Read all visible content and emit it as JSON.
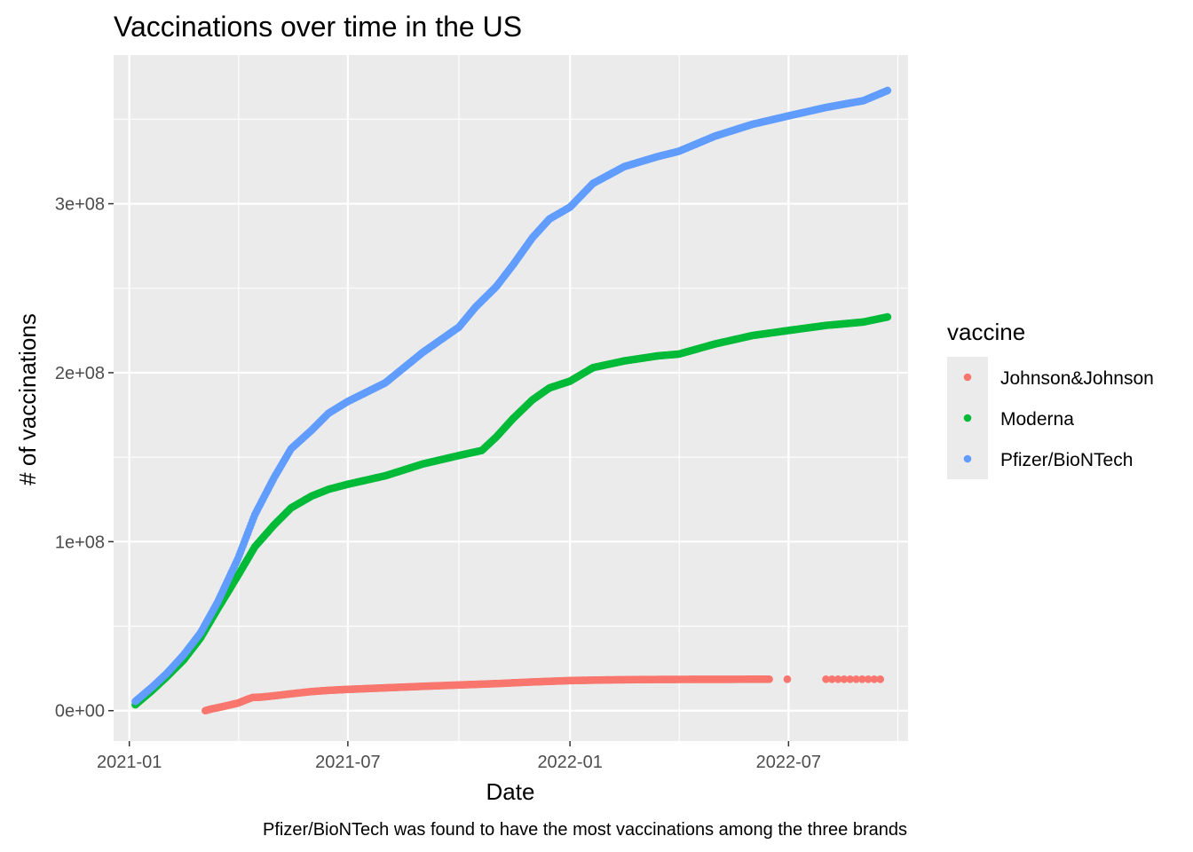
{
  "chart_data": {
    "type": "scatter",
    "title": "Vaccinations over time in the US",
    "xlabel": "Date",
    "ylabel": "# of vaccinations",
    "caption": "Pfizer/BioNTech was found to have the most vaccinations among the three brands",
    "legend_title": "vaccine",
    "legend_position": "right",
    "grid": true,
    "x_range": [
      "2020-12-19",
      "2022-10-08"
    ],
    "y_range": [
      -18000000,
      388000000
    ],
    "x_ticks": [
      "2021-01-01",
      "2021-07-01",
      "2022-01-01",
      "2022-07-01"
    ],
    "x_tick_labels": [
      "2021-01",
      "2021-07",
      "2022-01",
      "2022-07"
    ],
    "y_ticks": [
      0,
      100000000,
      200000000,
      300000000
    ],
    "y_tick_labels": [
      "0e+00",
      "1e+08",
      "2e+08",
      "3e+08"
    ],
    "series": [
      {
        "name": "Johnson&Johnson",
        "color": "#F8766D",
        "points": [
          [
            "2021-03-05",
            0
          ],
          [
            "2021-03-10",
            1000000
          ],
          [
            "2021-03-20",
            2500000
          ],
          [
            "2021-04-01",
            4500000
          ],
          [
            "2021-04-08",
            6500000
          ],
          [
            "2021-04-13",
            7800000
          ],
          [
            "2021-04-20",
            8000000
          ],
          [
            "2021-05-01",
            8800000
          ],
          [
            "2021-05-15",
            10000000
          ],
          [
            "2021-06-01",
            11300000
          ],
          [
            "2021-06-15",
            12000000
          ],
          [
            "2021-07-01",
            12600000
          ],
          [
            "2021-08-01",
            13500000
          ],
          [
            "2021-09-01",
            14400000
          ],
          [
            "2021-10-01",
            15200000
          ],
          [
            "2021-11-01",
            16000000
          ],
          [
            "2021-12-01",
            17000000
          ],
          [
            "2022-01-01",
            17800000
          ],
          [
            "2022-02-01",
            18200000
          ],
          [
            "2022-03-01",
            18400000
          ],
          [
            "2022-04-01",
            18500000
          ],
          [
            "2022-06-15",
            18600000
          ]
        ],
        "extra_points": [
          "2022-06-30",
          "2022-08-01",
          "2022-08-06",
          "2022-08-11",
          "2022-08-16",
          "2022-08-21",
          "2022-08-26",
          "2022-08-31",
          "2022-09-05",
          "2022-09-10",
          "2022-09-15"
        ],
        "extra_value": 18600000
      },
      {
        "name": "Moderna",
        "color": "#00BA38",
        "points": [
          [
            "2021-01-06",
            3500000
          ],
          [
            "2021-01-20",
            12000000
          ],
          [
            "2021-02-01",
            20000000
          ],
          [
            "2021-02-15",
            30000000
          ],
          [
            "2021-03-01",
            43000000
          ],
          [
            "2021-03-15",
            60000000
          ],
          [
            "2021-04-01",
            80000000
          ],
          [
            "2021-04-15",
            97000000
          ],
          [
            "2021-05-01",
            110000000
          ],
          [
            "2021-05-15",
            120000000
          ],
          [
            "2021-06-01",
            127000000
          ],
          [
            "2021-06-15",
            131000000
          ],
          [
            "2021-07-01",
            134000000
          ],
          [
            "2021-08-01",
            139000000
          ],
          [
            "2021-09-01",
            146000000
          ],
          [
            "2021-10-01",
            151000000
          ],
          [
            "2021-10-20",
            154000000
          ],
          [
            "2021-11-01",
            162000000
          ],
          [
            "2021-11-15",
            173000000
          ],
          [
            "2021-12-01",
            184000000
          ],
          [
            "2021-12-15",
            191000000
          ],
          [
            "2022-01-01",
            195000000
          ],
          [
            "2022-01-20",
            203000000
          ],
          [
            "2022-02-15",
            207000000
          ],
          [
            "2022-03-15",
            210000000
          ],
          [
            "2022-04-01",
            211000000
          ],
          [
            "2022-05-01",
            217000000
          ],
          [
            "2022-06-01",
            222000000
          ],
          [
            "2022-07-01",
            225000000
          ],
          [
            "2022-08-01",
            228000000
          ],
          [
            "2022-09-01",
            230000000
          ],
          [
            "2022-09-21",
            233000000
          ]
        ]
      },
      {
        "name": "Pfizer/BioNTech",
        "color": "#619CFF",
        "points": [
          [
            "2021-01-06",
            5500000
          ],
          [
            "2021-01-20",
            14000000
          ],
          [
            "2021-02-01",
            22000000
          ],
          [
            "2021-02-15",
            33000000
          ],
          [
            "2021-03-01",
            46000000
          ],
          [
            "2021-03-15",
            64000000
          ],
          [
            "2021-04-01",
            90000000
          ],
          [
            "2021-04-15",
            116000000
          ],
          [
            "2021-05-01",
            138000000
          ],
          [
            "2021-05-15",
            155000000
          ],
          [
            "2021-06-01",
            166000000
          ],
          [
            "2021-06-15",
            176000000
          ],
          [
            "2021-07-01",
            183000000
          ],
          [
            "2021-08-01",
            194000000
          ],
          [
            "2021-09-01",
            212000000
          ],
          [
            "2021-10-01",
            227000000
          ],
          [
            "2021-10-15",
            239000000
          ],
          [
            "2021-11-01",
            251000000
          ],
          [
            "2021-11-15",
            264000000
          ],
          [
            "2021-12-01",
            280000000
          ],
          [
            "2021-12-15",
            291000000
          ],
          [
            "2022-01-01",
            298000000
          ],
          [
            "2022-01-20",
            312000000
          ],
          [
            "2022-02-15",
            322000000
          ],
          [
            "2022-03-15",
            328000000
          ],
          [
            "2022-04-01",
            331000000
          ],
          [
            "2022-05-01",
            340000000
          ],
          [
            "2022-06-01",
            347000000
          ],
          [
            "2022-07-01",
            352000000
          ],
          [
            "2022-08-01",
            357000000
          ],
          [
            "2022-09-01",
            361000000
          ],
          [
            "2022-09-21",
            367000000
          ]
        ]
      }
    ]
  }
}
